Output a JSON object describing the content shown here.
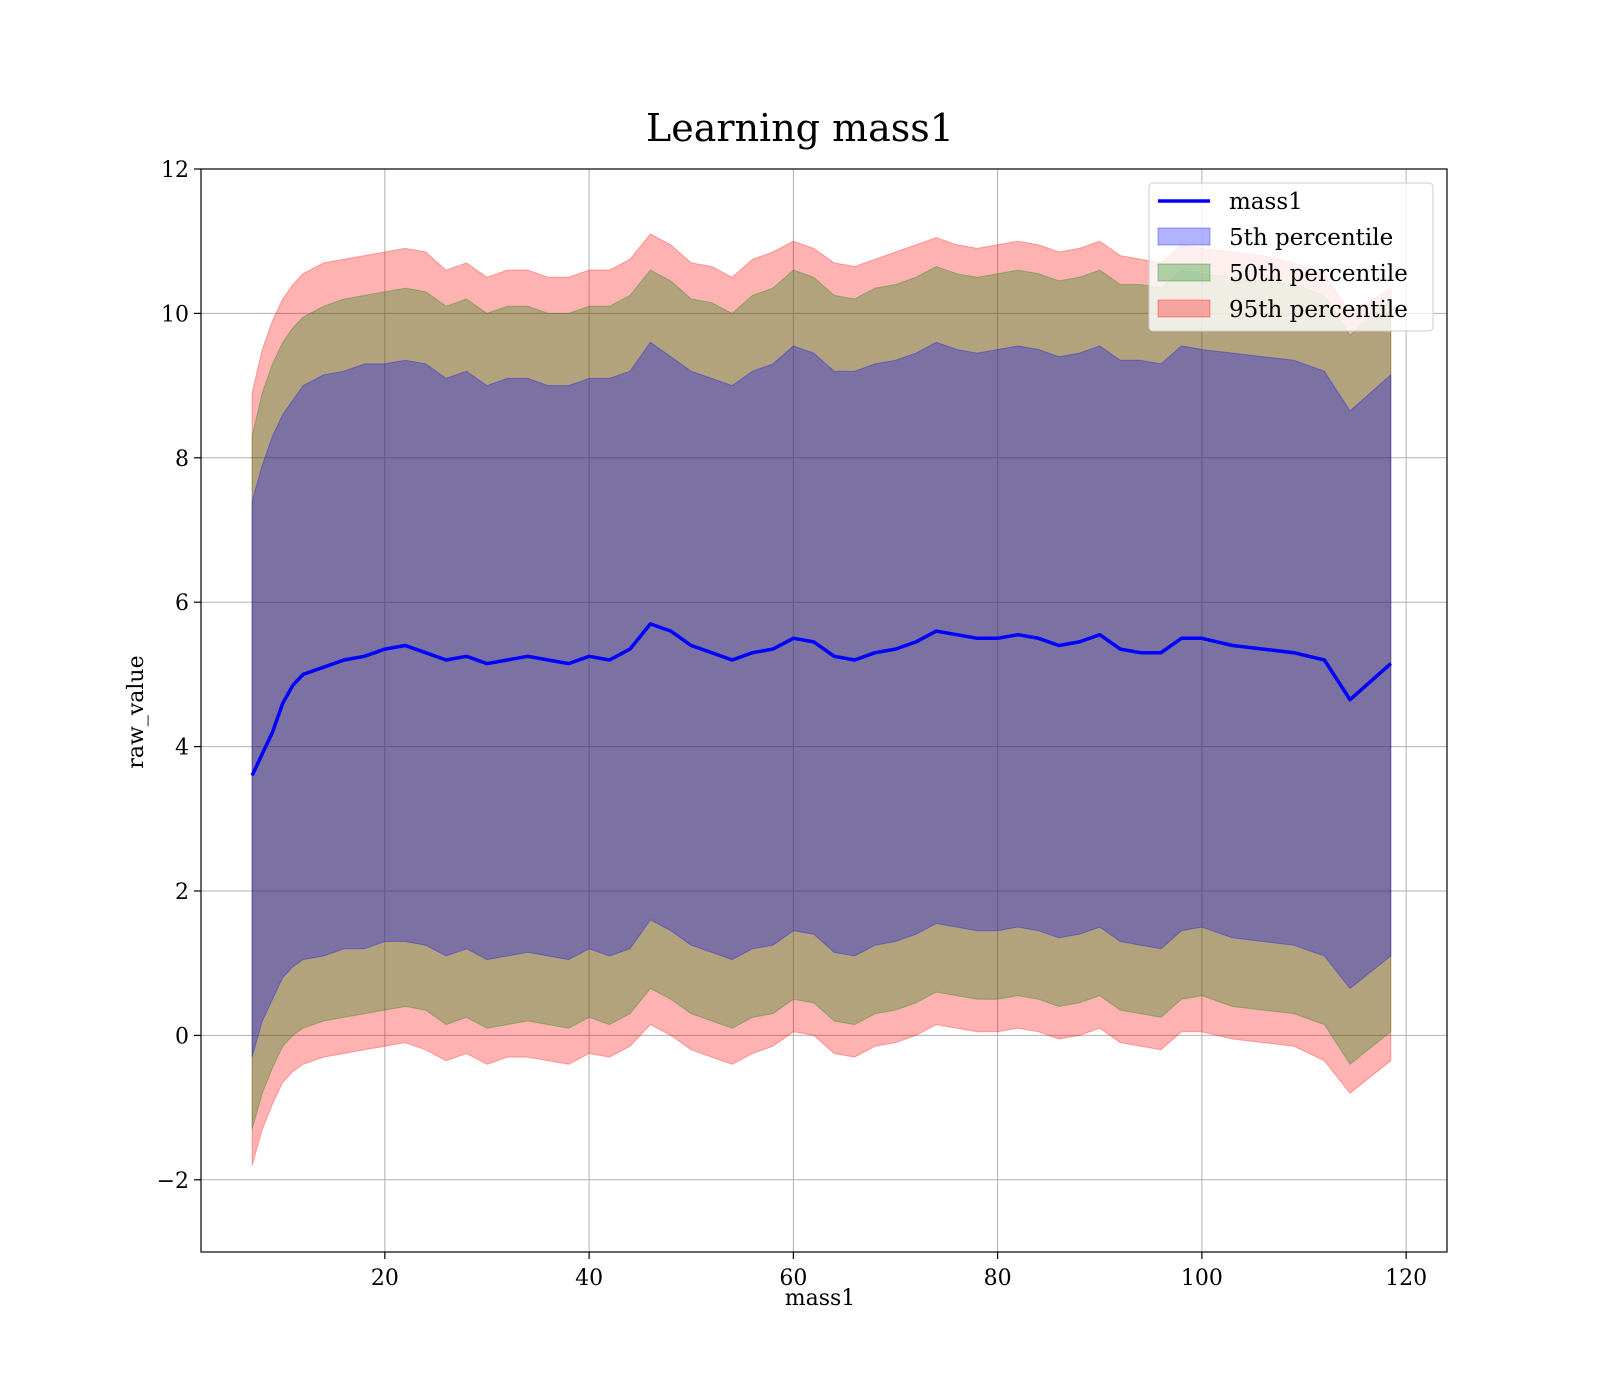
{
  "chart_data": {
    "type": "line",
    "title": "Learning mass1",
    "xlabel": "mass1",
    "ylabel": "raw_value",
    "xlim": [
      2,
      124
    ],
    "ylim": [
      -3,
      12
    ],
    "xticks": [
      20,
      40,
      60,
      80,
      100,
      120
    ],
    "yticks": [
      -2,
      0,
      2,
      4,
      6,
      8,
      10,
      12
    ],
    "ytick_labels": [
      "−2",
      "0",
      "2",
      "4",
      "6",
      "8",
      "10",
      "12"
    ],
    "grid": true,
    "legend_position": "top-right",
    "x": [
      7,
      8,
      9,
      10,
      11,
      12,
      14,
      16,
      18,
      20,
      22,
      24,
      26,
      28,
      30,
      32,
      34,
      36,
      38,
      40,
      42,
      44,
      46,
      48,
      50,
      52,
      54,
      56,
      58,
      60,
      62,
      64,
      66,
      68,
      70,
      72,
      74,
      76,
      78,
      80,
      82,
      84,
      86,
      88,
      90,
      92,
      94,
      96,
      98,
      100,
      103,
      106,
      109,
      112,
      114.5,
      118.5
    ],
    "line": {
      "name": "mass1",
      "color": "#0000ff",
      "values": [
        3.6,
        3.9,
        4.2,
        4.6,
        4.85,
        5.0,
        5.1,
        5.2,
        5.25,
        5.35,
        5.4,
        5.3,
        5.2,
        5.25,
        5.15,
        5.2,
        5.25,
        5.2,
        5.15,
        5.25,
        5.2,
        5.35,
        5.7,
        5.6,
        5.4,
        5.3,
        5.2,
        5.3,
        5.35,
        5.5,
        5.45,
        5.25,
        5.2,
        5.3,
        5.35,
        5.45,
        5.6,
        5.55,
        5.5,
        5.5,
        5.55,
        5.5,
        5.4,
        5.45,
        5.55,
        5.35,
        5.3,
        5.3,
        5.5,
        5.5,
        5.4,
        5.35,
        5.3,
        5.2,
        4.65,
        5.15
      ]
    },
    "series": [
      {
        "name": "5th percentile",
        "color": "#0000ff",
        "upper": [
          7.4,
          7.9,
          8.3,
          8.6,
          8.8,
          9.0,
          9.15,
          9.2,
          9.3,
          9.3,
          9.35,
          9.3,
          9.1,
          9.2,
          9.0,
          9.1,
          9.1,
          9.0,
          9.0,
          9.1,
          9.1,
          9.2,
          9.6,
          9.4,
          9.2,
          9.1,
          9.0,
          9.2,
          9.3,
          9.55,
          9.45,
          9.2,
          9.2,
          9.3,
          9.35,
          9.45,
          9.6,
          9.5,
          9.45,
          9.5,
          9.55,
          9.5,
          9.4,
          9.45,
          9.55,
          9.35,
          9.35,
          9.3,
          9.55,
          9.5,
          9.45,
          9.4,
          9.35,
          9.2,
          8.65,
          9.15
        ],
        "lower": [
          -0.3,
          0.2,
          0.5,
          0.8,
          0.95,
          1.05,
          1.1,
          1.2,
          1.2,
          1.3,
          1.3,
          1.25,
          1.1,
          1.2,
          1.05,
          1.1,
          1.15,
          1.1,
          1.05,
          1.2,
          1.1,
          1.2,
          1.6,
          1.45,
          1.25,
          1.15,
          1.05,
          1.2,
          1.25,
          1.45,
          1.4,
          1.15,
          1.1,
          1.25,
          1.3,
          1.4,
          1.55,
          1.5,
          1.45,
          1.45,
          1.5,
          1.45,
          1.35,
          1.4,
          1.5,
          1.3,
          1.25,
          1.2,
          1.45,
          1.5,
          1.35,
          1.3,
          1.25,
          1.1,
          0.65,
          1.1
        ]
      },
      {
        "name": "50th percentile",
        "color": "#008000",
        "upper": [
          8.3,
          8.9,
          9.3,
          9.6,
          9.8,
          9.95,
          10.1,
          10.2,
          10.25,
          10.3,
          10.35,
          10.3,
          10.1,
          10.2,
          10.0,
          10.1,
          10.1,
          10.0,
          10.0,
          10.1,
          10.1,
          10.25,
          10.6,
          10.45,
          10.2,
          10.15,
          10.0,
          10.25,
          10.35,
          10.6,
          10.5,
          10.25,
          10.2,
          10.35,
          10.4,
          10.5,
          10.65,
          10.55,
          10.5,
          10.55,
          10.6,
          10.55,
          10.45,
          10.5,
          10.6,
          10.4,
          10.4,
          10.35,
          10.6,
          10.55,
          10.5,
          10.45,
          10.4,
          10.25,
          9.7,
          10.2
        ],
        "lower": [
          -1.3,
          -0.8,
          -0.45,
          -0.15,
          0.0,
          0.1,
          0.2,
          0.25,
          0.3,
          0.35,
          0.4,
          0.35,
          0.15,
          0.25,
          0.1,
          0.15,
          0.2,
          0.15,
          0.1,
          0.25,
          0.15,
          0.3,
          0.65,
          0.5,
          0.3,
          0.2,
          0.1,
          0.25,
          0.3,
          0.5,
          0.45,
          0.2,
          0.15,
          0.3,
          0.35,
          0.45,
          0.6,
          0.55,
          0.5,
          0.5,
          0.55,
          0.5,
          0.4,
          0.45,
          0.55,
          0.35,
          0.3,
          0.25,
          0.5,
          0.55,
          0.4,
          0.35,
          0.3,
          0.15,
          -0.4,
          0.05
        ]
      },
      {
        "name": "95th percentile",
        "color": "#ff0000",
        "upper": [
          8.9,
          9.5,
          9.9,
          10.2,
          10.4,
          10.55,
          10.7,
          10.75,
          10.8,
          10.85,
          10.9,
          10.85,
          10.6,
          10.7,
          10.5,
          10.6,
          10.6,
          10.5,
          10.5,
          10.6,
          10.6,
          10.75,
          11.1,
          10.95,
          10.7,
          10.65,
          10.5,
          10.75,
          10.85,
          11.0,
          10.9,
          10.7,
          10.65,
          10.75,
          10.85,
          10.95,
          11.05,
          10.95,
          10.9,
          10.95,
          11.0,
          10.95,
          10.85,
          10.9,
          11.0,
          10.8,
          10.75,
          10.7,
          10.95,
          10.9,
          10.85,
          10.8,
          10.7,
          10.55,
          10.0,
          10.35
        ],
        "lower": [
          -1.8,
          -1.3,
          -0.95,
          -0.65,
          -0.5,
          -0.4,
          -0.3,
          -0.25,
          -0.2,
          -0.15,
          -0.1,
          -0.2,
          -0.35,
          -0.25,
          -0.4,
          -0.3,
          -0.3,
          -0.35,
          -0.4,
          -0.25,
          -0.3,
          -0.15,
          0.15,
          0.0,
          -0.2,
          -0.3,
          -0.4,
          -0.25,
          -0.15,
          0.05,
          0.0,
          -0.25,
          -0.3,
          -0.15,
          -0.1,
          0.0,
          0.15,
          0.1,
          0.05,
          0.05,
          0.1,
          0.05,
          -0.05,
          0.0,
          0.1,
          -0.1,
          -0.15,
          -0.2,
          0.05,
          0.05,
          -0.05,
          -0.1,
          -0.15,
          -0.35,
          -0.8,
          -0.35
        ]
      }
    ]
  }
}
